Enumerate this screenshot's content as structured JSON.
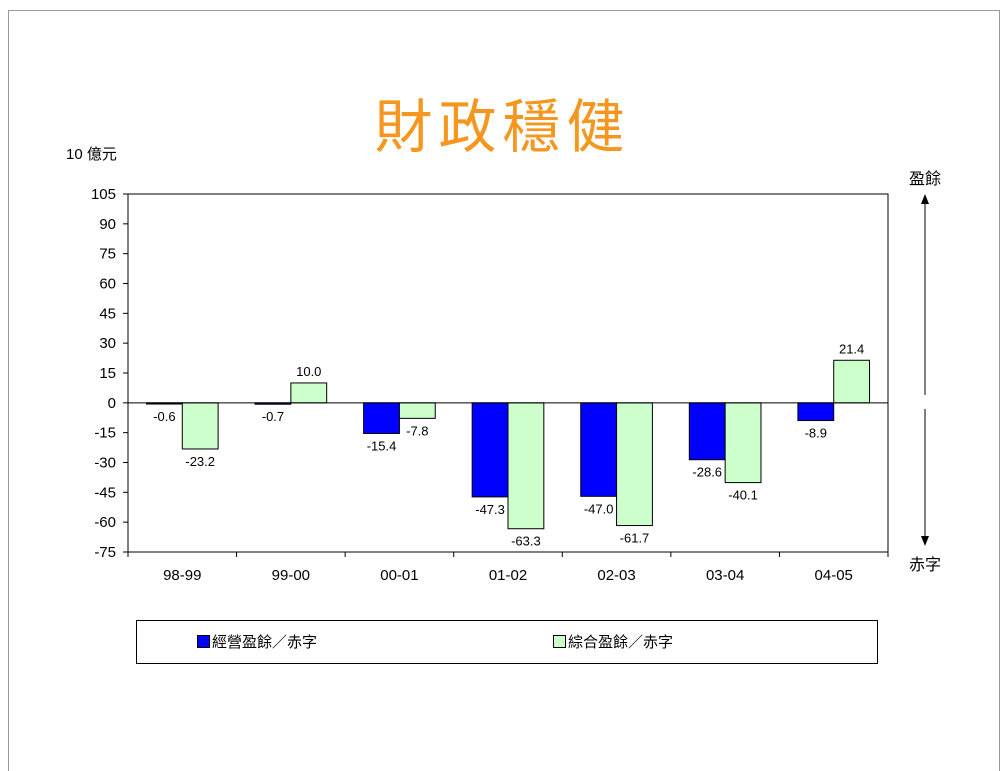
{
  "title": "財政穩健",
  "unit_label": "10 億元",
  "indicator": {
    "top_label": "盈餘",
    "bottom_label": "赤字"
  },
  "colors": {
    "series1": "#0000ff",
    "series2": "#ccffcc",
    "title": "#f5961e"
  },
  "legend_position": "bottom",
  "chart_data": {
    "type": "bar",
    "title": "財政穩健",
    "ylabel": "10 億元",
    "xlabel": "",
    "ylim": [
      -75,
      105
    ],
    "yticks": [
      105,
      90,
      75,
      60,
      45,
      30,
      15,
      0,
      -15,
      -30,
      -45,
      -60,
      -75
    ],
    "grid": false,
    "categories": [
      "98-99",
      "99-00",
      "00-01",
      "01-02",
      "02-03",
      "03-04",
      "04-05"
    ],
    "series": [
      {
        "name": "經營盈餘／赤字",
        "values": [
          -0.6,
          -0.7,
          -15.4,
          -47.3,
          -47.0,
          -28.6,
          -8.9
        ]
      },
      {
        "name": "綜合盈餘／赤字",
        "values": [
          -23.2,
          10.0,
          -7.8,
          -63.3,
          -61.7,
          -40.1,
          21.4
        ]
      }
    ]
  }
}
